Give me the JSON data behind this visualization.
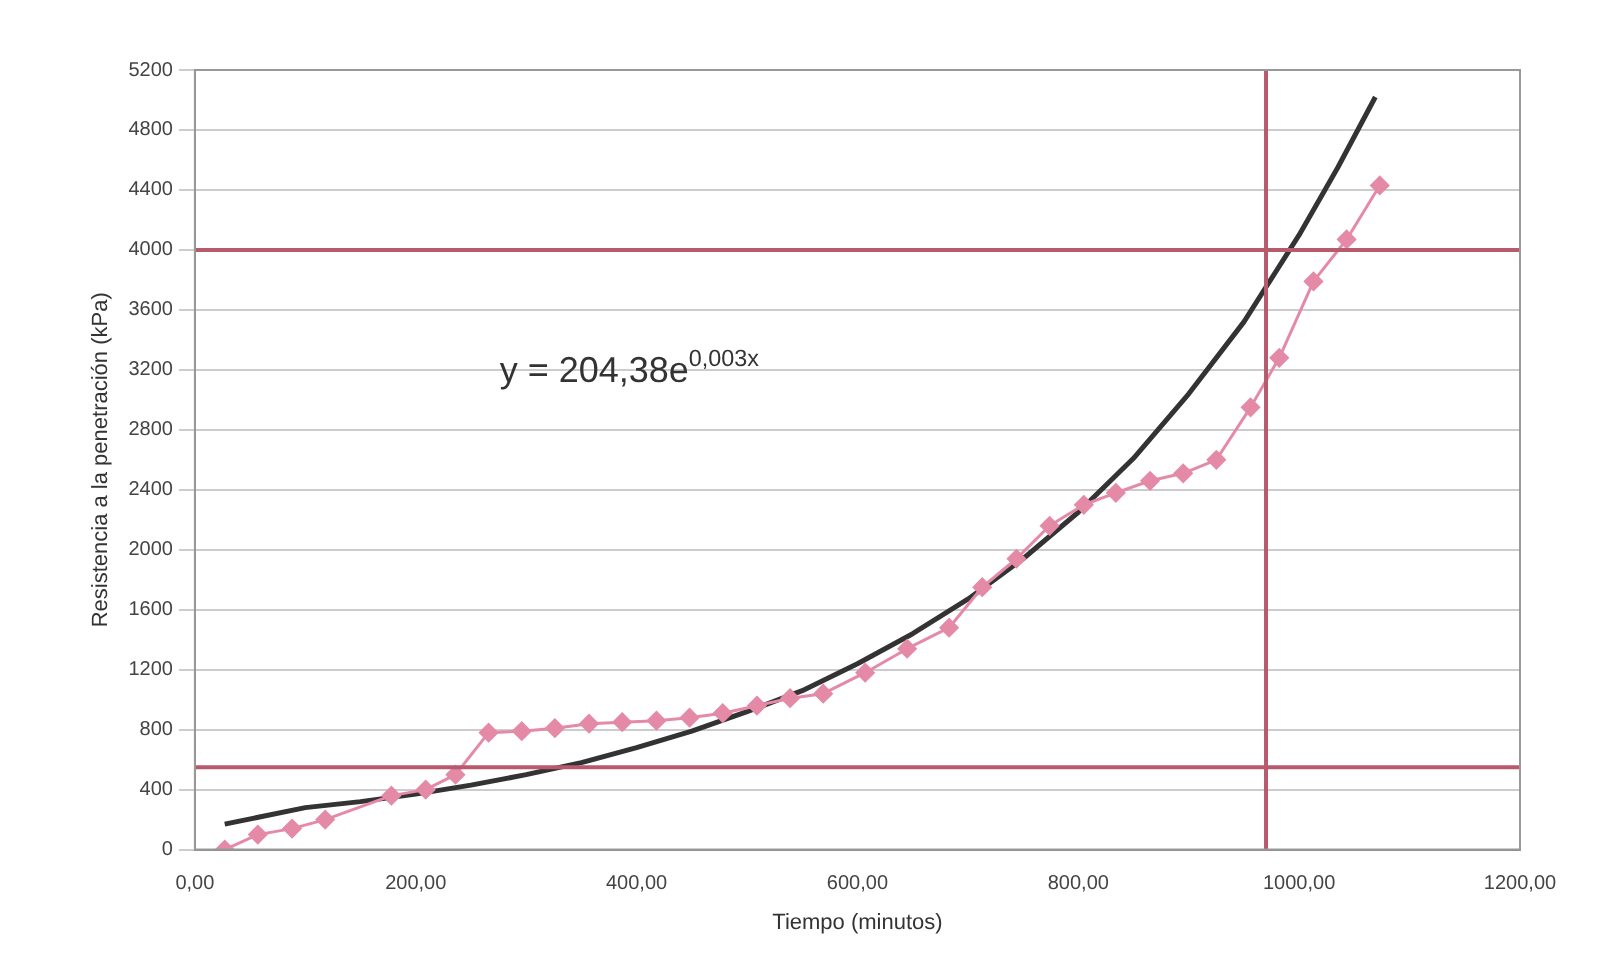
{
  "chart_data": {
    "type": "line",
    "xlabel": "Tiempo (minutos)",
    "ylabel": "Resistencia a la penetración (kPa)",
    "xlim": [
      0,
      1200
    ],
    "xticks": [
      {
        "value": 0,
        "label": "0,00"
      },
      {
        "value": 200,
        "label": "200,00"
      },
      {
        "value": 400,
        "label": "400,00"
      },
      {
        "value": 600,
        "label": "600,00"
      },
      {
        "value": 800,
        "label": "800,00"
      },
      {
        "value": 1000,
        "label": "1000,00"
      },
      {
        "value": 1200,
        "label": "1200,00"
      }
    ],
    "ylim": [
      0,
      5200
    ],
    "yticks": [
      0,
      400,
      800,
      1200,
      1600,
      2000,
      2400,
      2800,
      3200,
      3600,
      4000,
      4400,
      4800,
      5200
    ],
    "grid": "y",
    "legend": false,
    "series": [
      {
        "color": "#e58aa6",
        "marker": "diamond",
        "line_style": "solid",
        "x": [
          27,
          57,
          88,
          118,
          178,
          209,
          236,
          266,
          296,
          326,
          357,
          387,
          418,
          448,
          478,
          509,
          539,
          569,
          607,
          645,
          683,
          713,
          744,
          774,
          805,
          834,
          865,
          895,
          925,
          956,
          982,
          1013,
          1043,
          1073
        ],
        "values": [
          0,
          100,
          140,
          200,
          360,
          400,
          500,
          780,
          790,
          810,
          840,
          850,
          860,
          880,
          910,
          960,
          1010,
          1040,
          1180,
          1340,
          1480,
          1750,
          1940,
          2160,
          2300,
          2380,
          2460,
          2510,
          2600,
          2950,
          3280,
          3790,
          4070,
          4430
        ]
      },
      {
        "color": "#333333",
        "marker": "none",
        "line_style": "solid",
        "x": [
          27,
          100,
          150,
          200,
          250,
          300,
          350,
          400,
          450,
          500,
          550,
          600,
          650,
          700,
          750,
          800,
          850,
          900,
          950,
          1000,
          1035,
          1069
        ],
        "values": [
          170,
          280,
          320,
          370,
          430,
          500,
          580,
          680,
          790,
          920,
          1060,
          1240,
          1440,
          1670,
          1940,
          2250,
          2610,
          3040,
          3520,
          4100,
          4550,
          5020
        ]
      }
    ],
    "ref_lines": [
      {
        "axis": "y",
        "value": 4000,
        "color": "#b85a6e"
      },
      {
        "axis": "y",
        "value": 550,
        "color": "#b85a6e"
      },
      {
        "axis": "x",
        "value": 970,
        "color": "#b85a6e"
      }
    ],
    "annotations": [
      "y = 204,38e$^{0,003x}$"
    ]
  }
}
